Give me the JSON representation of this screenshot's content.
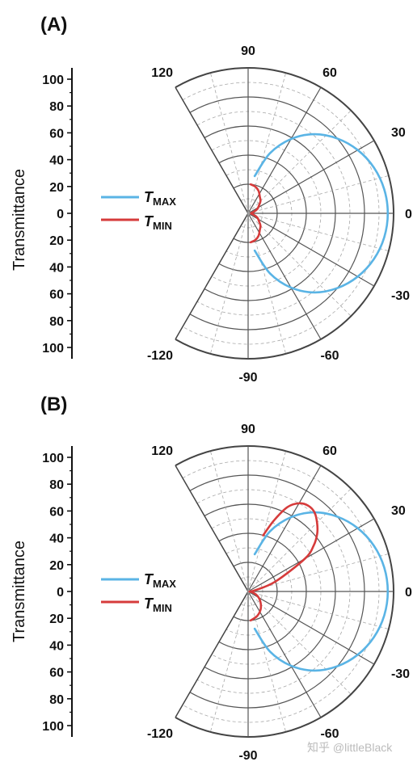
{
  "watermark": "知乎 @littleBlack",
  "chart_data": [
    {
      "type": "polar-line",
      "panel_label": "(A)",
      "ylabel": "Transmittance",
      "r_ticks": [
        "100",
        "80",
        "60",
        "40",
        "20",
        "0",
        "20",
        "40",
        "60",
        "80",
        "100"
      ],
      "r_range": [
        0,
        100
      ],
      "angle_range": [
        -120,
        120
      ],
      "angle_ticks": [
        "120",
        "90",
        "60",
        "30",
        "0",
        "-30",
        "-60",
        "-90",
        "-120"
      ],
      "grid": true,
      "legend_position": "left",
      "series": [
        {
          "name": "T",
          "sub": "MAX",
          "color": "#5ab4e5",
          "theta": [
            -80,
            -70,
            -60,
            -50,
            -40,
            -30,
            -20,
            -10,
            0,
            10,
            20,
            30,
            40,
            50,
            60,
            70,
            80
          ],
          "r": [
            26,
            44,
            59,
            71,
            80,
            87,
            92,
            95,
            96,
            95,
            92,
            87,
            80,
            71,
            59,
            44,
            26
          ]
        },
        {
          "name": "T",
          "sub": "MIN",
          "color": "#d63b3b",
          "theta": [
            -85,
            -75,
            -65,
            -55,
            -45,
            -35,
            -25,
            -15,
            0,
            15,
            25,
            35,
            45,
            55,
            65,
            75,
            85
          ],
          "r": [
            20,
            19,
            17,
            14,
            12,
            9,
            7,
            4,
            2,
            4,
            7,
            9,
            12,
            14,
            17,
            19,
            20
          ]
        }
      ]
    },
    {
      "type": "polar-line",
      "panel_label": "(B)",
      "ylabel": "Transmittance",
      "r_ticks": [
        "100",
        "80",
        "60",
        "40",
        "20",
        "0",
        "20",
        "40",
        "60",
        "80",
        "100"
      ],
      "r_range": [
        0,
        100
      ],
      "angle_range": [
        -120,
        120
      ],
      "angle_ticks": [
        "120",
        "90",
        "60",
        "30",
        "0",
        "-30",
        "-60",
        "-90",
        "-120"
      ],
      "grid": true,
      "legend_position": "left",
      "series": [
        {
          "name": "T",
          "sub": "MAX",
          "color": "#5ab4e5",
          "theta": [
            -80,
            -70,
            -60,
            -50,
            -40,
            -30,
            -20,
            -10,
            0,
            10,
            20,
            30,
            40,
            50,
            60,
            70,
            80
          ],
          "r": [
            26,
            44,
            59,
            71,
            80,
            87,
            92,
            95,
            96,
            95,
            92,
            87,
            80,
            71,
            59,
            44,
            26
          ]
        },
        {
          "name": "T",
          "sub": "MIN",
          "color": "#d63b3b",
          "theta": [
            -85,
            -70,
            -55,
            -40,
            -25,
            -10,
            0,
            10,
            20,
            30,
            35,
            40,
            45,
            50,
            55,
            60,
            65,
            70,
            75
          ],
          "r": [
            20,
            18,
            15,
            11,
            7,
            3,
            1,
            5,
            20,
            45,
            55,
            62,
            67,
            71,
            72,
            70,
            64,
            52,
            40
          ]
        }
      ]
    }
  ]
}
